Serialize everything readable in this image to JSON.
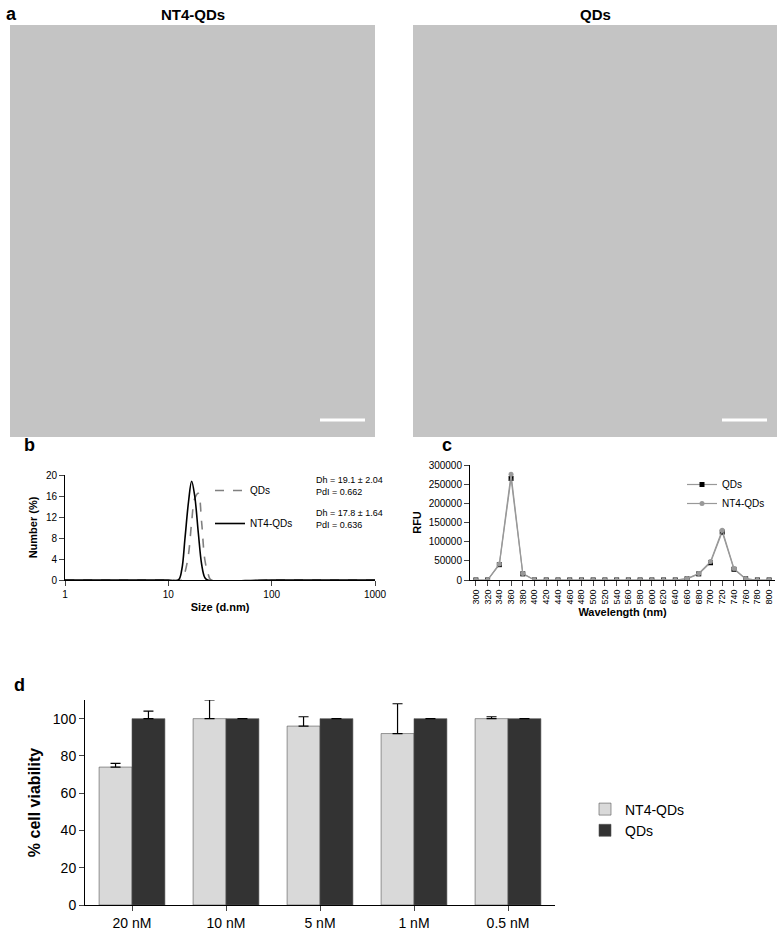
{
  "images": {
    "label": "a",
    "titles": [
      "NT4-QDs",
      "QDs"
    ]
  },
  "chart_data": [
    {
      "label": "b",
      "type": "line",
      "x_title": "Size (d.nm)",
      "y_title": "Number (%)",
      "log": "x",
      "xlim": [
        1,
        1000
      ],
      "xticks": [
        1,
        10,
        100,
        1000
      ],
      "ylim": [
        0,
        20
      ],
      "yticks": [
        0,
        4,
        8,
        12,
        16,
        20
      ],
      "legend": "top right",
      "series": [
        {
          "name": "QDs",
          "color": "#808080",
          "line_style": "dash",
          "x": [
            1,
            10,
            13.5,
            14.5,
            15.7,
            16.8,
            18,
            19.5,
            21,
            22.5,
            24.4,
            26,
            100,
            1000
          ],
          "values": [
            0,
            0,
            0,
            1.5,
            5,
            11,
            15.5,
            16.5,
            11,
            4,
            1,
            0,
            0,
            0
          ],
          "annotations": [
            "Dh = 19.1 ± 2.04",
            "PdI = 0.662"
          ]
        },
        {
          "name": "NT4-QDs",
          "color": "#000000",
          "line_style": "solid",
          "x": [
            1,
            10,
            12.5,
            13.5,
            14.5,
            15.7,
            16.8,
            18,
            19.5,
            21,
            22.5,
            24,
            100,
            1000
          ],
          "values": [
            0,
            0,
            0,
            2,
            8,
            15,
            18.8,
            16,
            9,
            3,
            0.5,
            0,
            0,
            0
          ],
          "annotations": [
            "Dh = 17.8 ± 1.64",
            "PdI = 0.636"
          ]
        }
      ]
    },
    {
      "label": "c",
      "type": "line",
      "x_title": "Wavelength (nm)",
      "y_title": "RFU",
      "xlim": [
        290,
        810
      ],
      "xticks": [
        300,
        320,
        340,
        360,
        380,
        400,
        420,
        440,
        460,
        480,
        500,
        520,
        540,
        560,
        580,
        600,
        620,
        640,
        660,
        680,
        700,
        720,
        740,
        760,
        780,
        800
      ],
      "ylim": [
        0,
        300000
      ],
      "yticks": [
        0,
        50000,
        100000,
        150000,
        200000,
        250000,
        300000
      ],
      "legend": "top right",
      "x": [
        300,
        320,
        340,
        360,
        380,
        400,
        420,
        440,
        460,
        480,
        500,
        520,
        540,
        560,
        580,
        600,
        620,
        640,
        660,
        680,
        700,
        720,
        740,
        760,
        780,
        800
      ],
      "series": [
        {
          "name": "QDs",
          "color": "#000000",
          "marker": "square",
          "values": [
            0,
            0,
            40000,
            265000,
            16000,
            0,
            0,
            0,
            0,
            0,
            0,
            0,
            0,
            0,
            0,
            0,
            0,
            0,
            3000,
            16000,
            45000,
            125000,
            28000,
            3000,
            0,
            0
          ]
        },
        {
          "name": "NT4-QDs",
          "color": "#999999",
          "marker": "circle",
          "values": [
            0,
            0,
            42000,
            276000,
            17000,
            0,
            0,
            0,
            0,
            0,
            0,
            0,
            0,
            0,
            0,
            0,
            0,
            0,
            4000,
            17000,
            48000,
            130000,
            30000,
            3000,
            0,
            0
          ]
        }
      ]
    },
    {
      "label": "d",
      "type": "bar",
      "y_title": "% cell viability",
      "categories": [
        "20 nM",
        "10 nM",
        "5 nM",
        "1 nM",
        "0.5 nM"
      ],
      "ylim": [
        0,
        110
      ],
      "yticks": [
        0,
        20,
        40,
        60,
        80,
        100
      ],
      "legend": "right",
      "series": [
        {
          "name": "NT4-QDs",
          "color": "#d9d9d9",
          "values": [
            74,
            100,
            96,
            92,
            100
          ],
          "errors": [
            2,
            10,
            5,
            16,
            1
          ]
        },
        {
          "name": "QDs",
          "color": "#333333",
          "values": [
            100,
            100,
            100,
            100,
            100
          ],
          "errors": [
            4,
            0,
            0,
            0,
            0
          ]
        }
      ]
    }
  ]
}
